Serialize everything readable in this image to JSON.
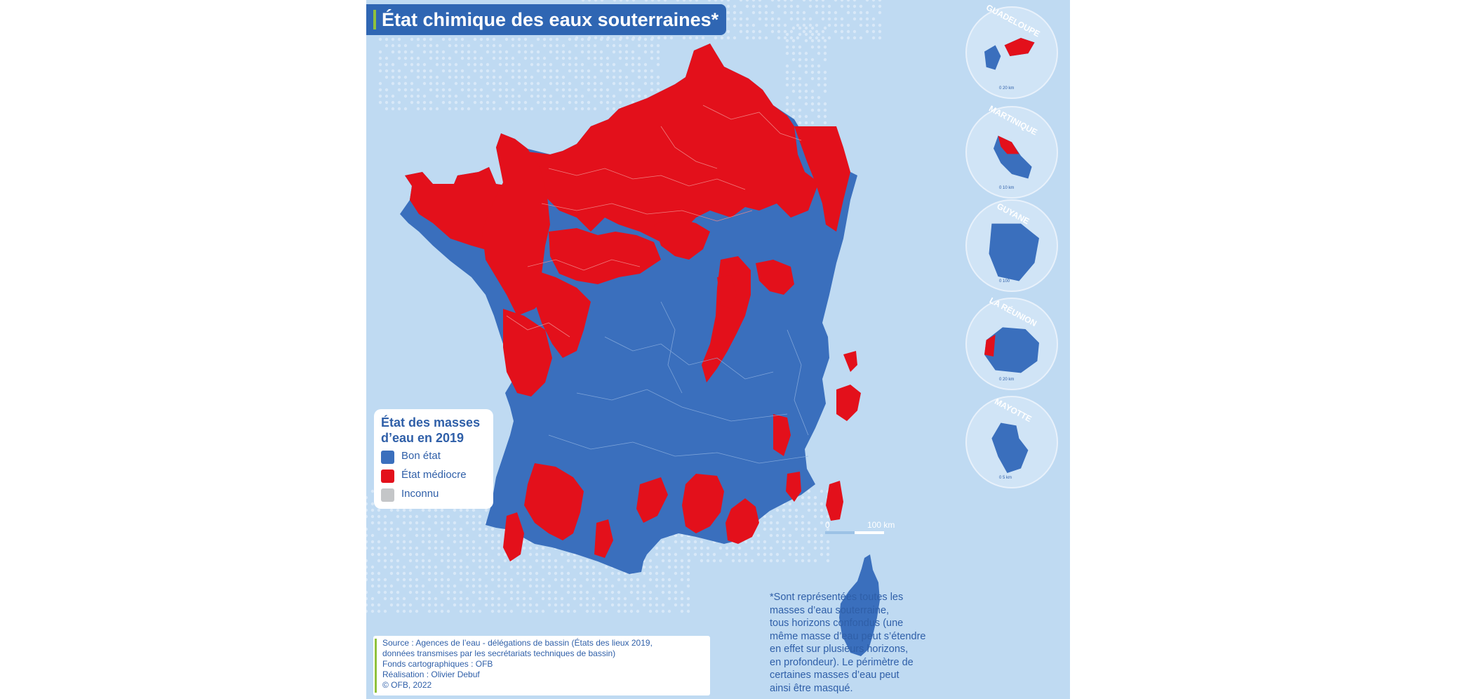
{
  "title": "État chimique des eaux souterraines*",
  "legend": {
    "title": "État des masses d’eau en 2019",
    "items": [
      {
        "label": "Bon état",
        "color": "#3a6fbd"
      },
      {
        "label": "État médiocre",
        "color": "#e3101b"
      },
      {
        "label": "Inconnu",
        "color": "#c4c6c8"
      }
    ]
  },
  "insets": [
    {
      "name": "GUADELOUPE",
      "scale": "20 km"
    },
    {
      "name": "MARTINIQUE",
      "scale": "10 km"
    },
    {
      "name": "GUYANE",
      "scale": "100"
    },
    {
      "name": "LA RÉUNION",
      "scale": "20 km"
    },
    {
      "name": "MAYOTTE",
      "scale": "5 km"
    }
  ],
  "scale_bar": {
    "start": "0",
    "end": "100 km"
  },
  "note": [
    "*Sont représentées toutes les",
    "masses d’eau souterraine,",
    "tous horizons confondus (une",
    "même masse d’eau peut s’étendre",
    "en effet sur plusieurs horizons,",
    "en profondeur). Le périmètre de",
    "certaines masses d’eau peut",
    "ainsi être masqué."
  ],
  "source": [
    "Source : Agences de l’eau - délégations de bassin (États des lieux 2019,",
    "données transmises par les secrétariats techniques de bassin)",
    "Fonds cartographiques : OFB",
    "Réalisation : Olivier Debuf",
    "© OFB, 2022"
  ],
  "colors": {
    "good": "#3a6fbd",
    "poor": "#e3101b",
    "sea": "#bfdaf2",
    "title_bg": "#2f66b3",
    "accent": "#8fc13c"
  }
}
